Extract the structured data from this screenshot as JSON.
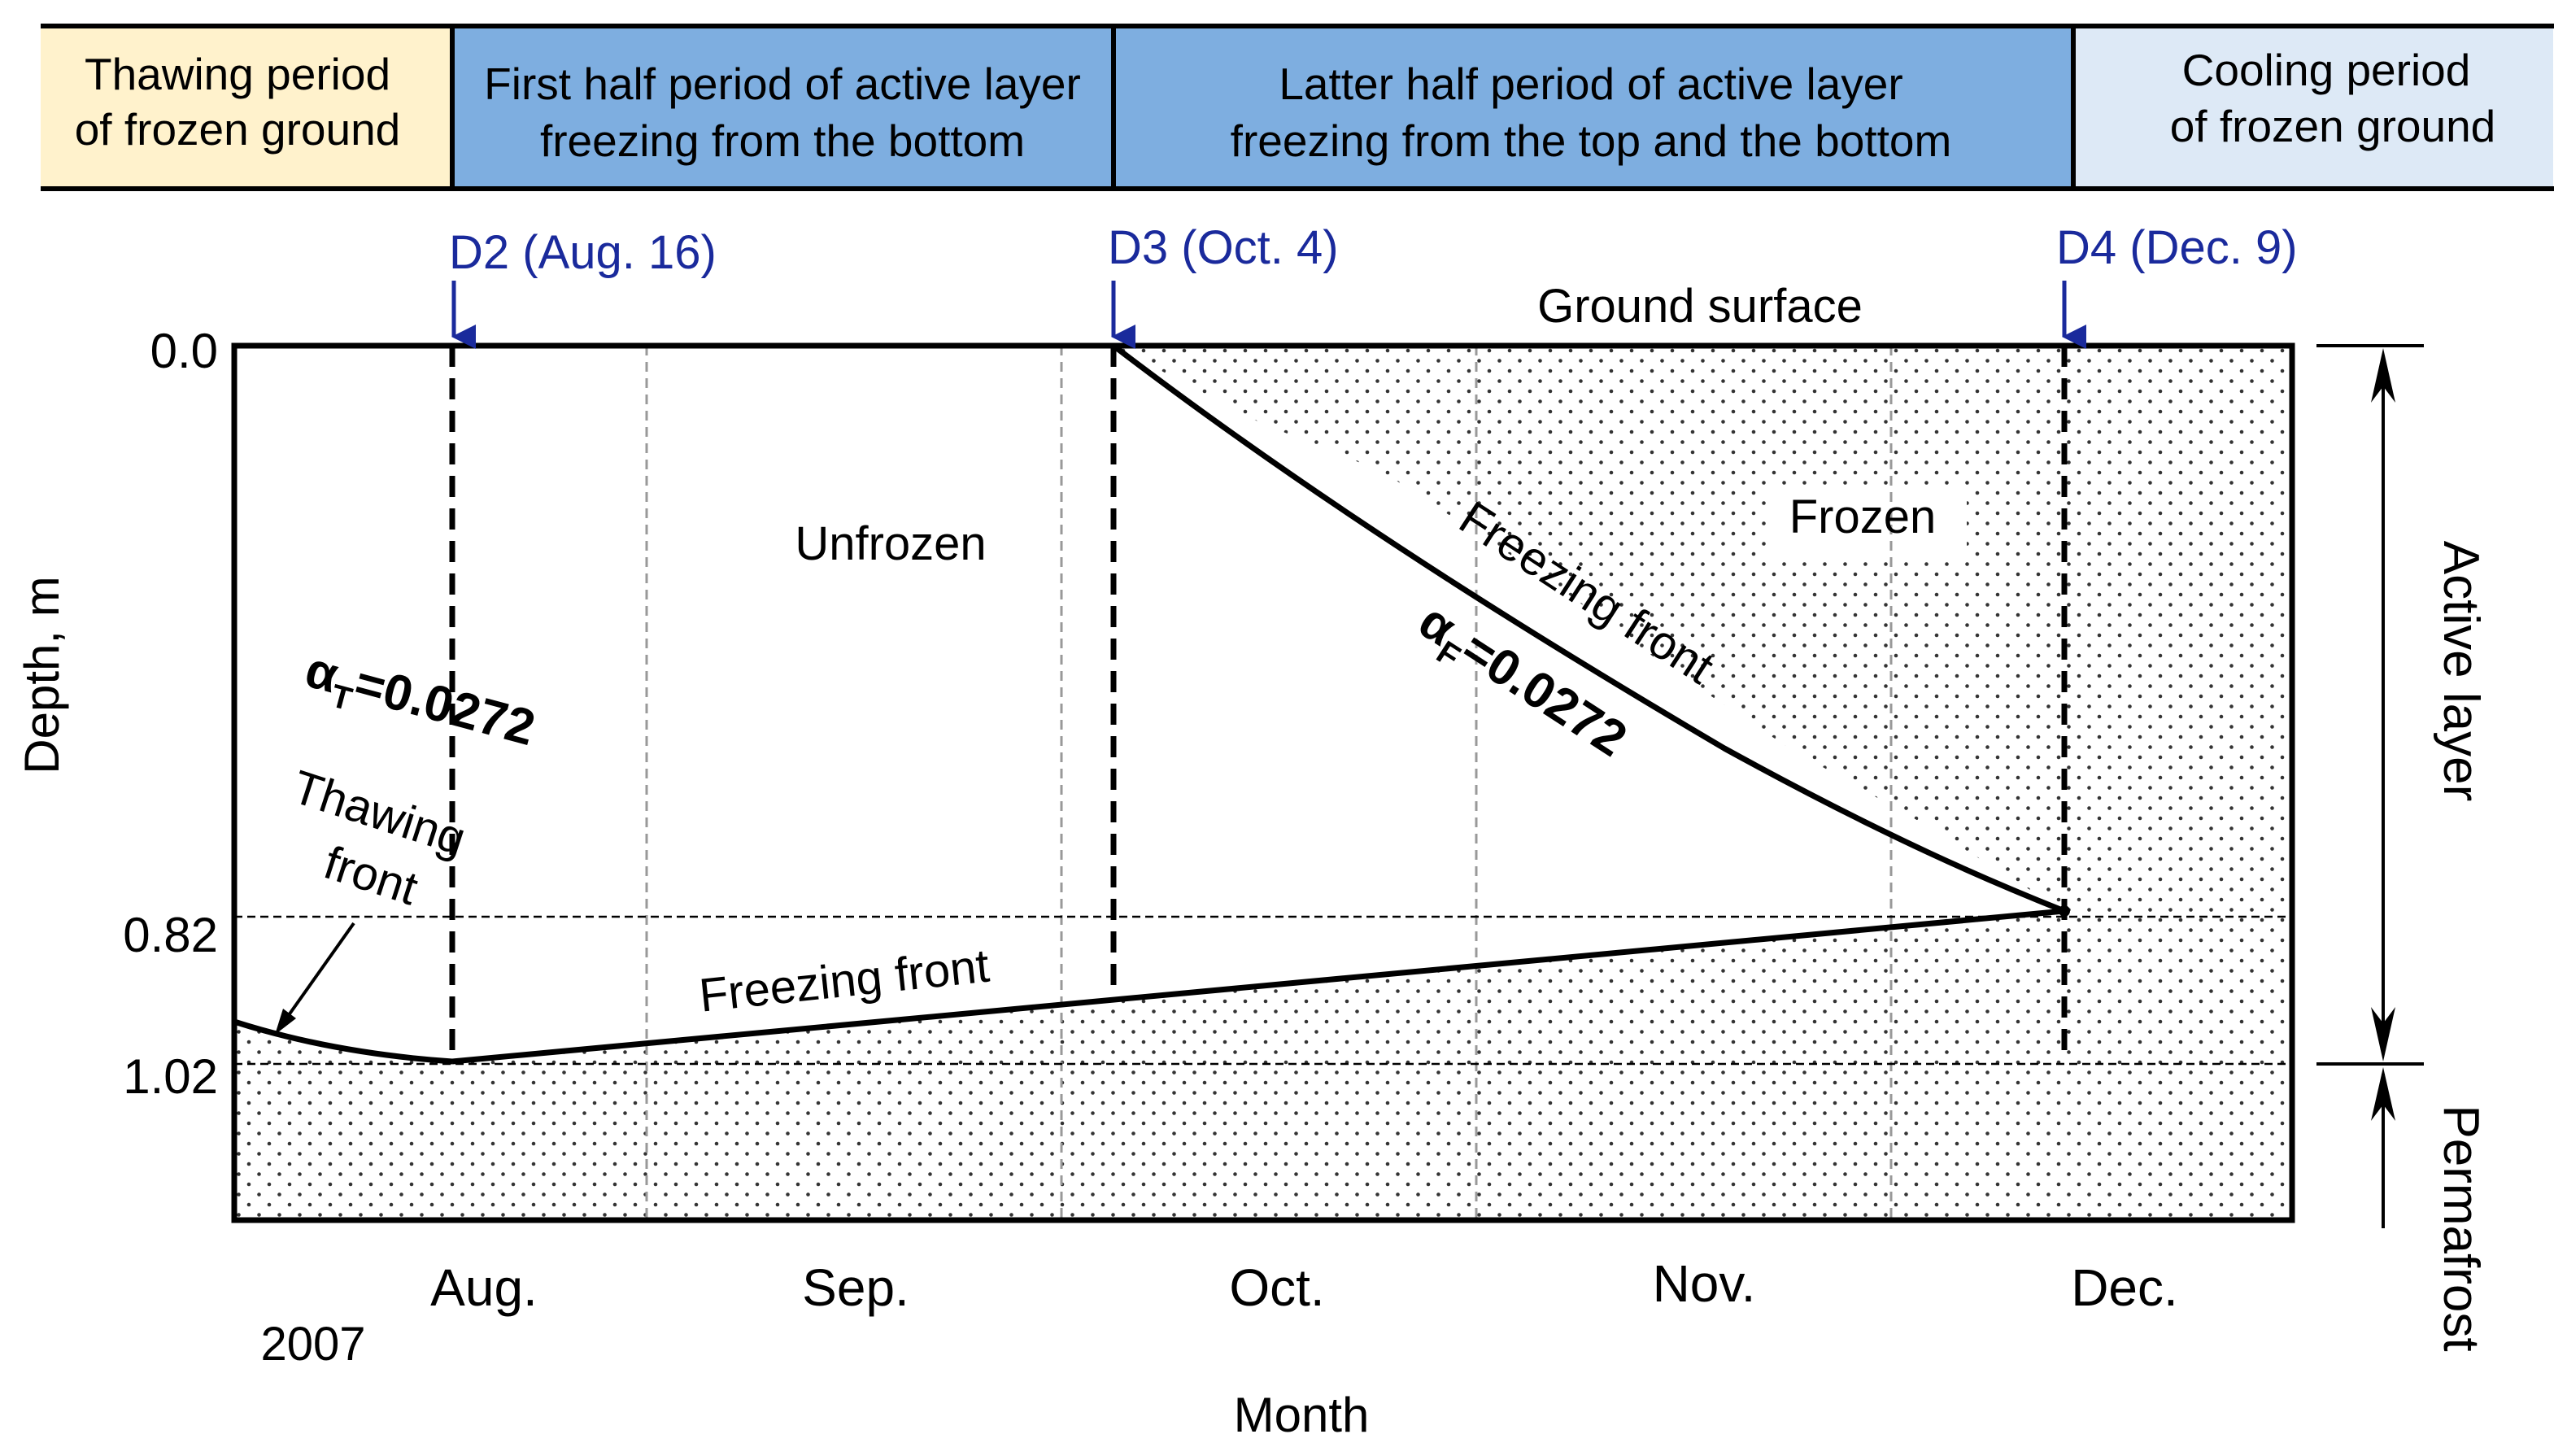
{
  "phases": [
    {
      "line1": "Thawing period",
      "line2": "of frozen ground",
      "color": "#fff2cc"
    },
    {
      "line1": "First half period of active layer",
      "line2": "freezing from the bottom",
      "color": "#7eaee0"
    },
    {
      "line1": "Latter half period of active layer",
      "line2": "freezing from the top and the bottom",
      "color": "#7eaee0"
    },
    {
      "line1": "Cooling period",
      "line2": "of frozen ground",
      "color": "#dde9f6"
    }
  ],
  "markers": [
    {
      "label": "D2 (Aug. 16)"
    },
    {
      "label": "D3 (Oct. 4)"
    },
    {
      "label": "D4 (Dec. 9)"
    }
  ],
  "marker_color": "#1a2a9c",
  "axis": {
    "ylabel": "Depth, m",
    "xlabel": "Month",
    "y_ticks": [
      "0.0",
      "0.82",
      "1.02"
    ],
    "months": [
      "Aug.",
      "Sep.",
      "Oct.",
      "Nov.",
      "Dec."
    ],
    "year": "2007"
  },
  "labels": {
    "ground_surface": "Ground surface",
    "unfrozen": "Unfrozen",
    "frozen": "Frozen",
    "freezing_front_top": "Freezing front",
    "freezing_front_bottom": "Freezing front",
    "thawing_front_line1": "Thawing",
    "thawing_front_line2": "front",
    "alpha_t_sym": "α",
    "alpha_t_sub": "T",
    "alpha_t_val": "=0.0272",
    "alpha_f_sym": "α",
    "alpha_f_sub": "F",
    "alpha_f_val": "=0.0272",
    "active_layer": "Active layer",
    "permafrost": "Permafrost"
  }
}
